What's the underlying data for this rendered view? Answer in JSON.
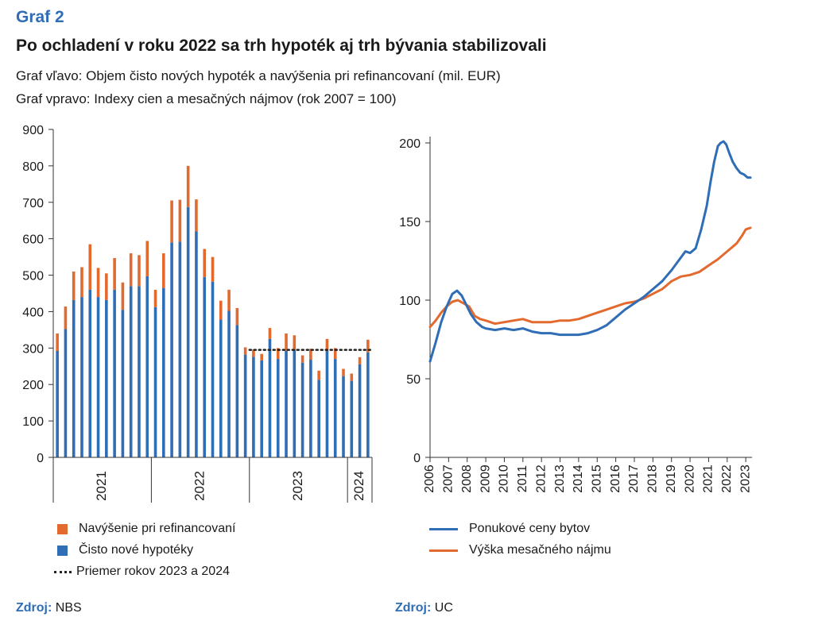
{
  "header": {
    "graf_label": "Graf 2",
    "title": "Po ochladení v roku 2022 sa trh hypoték aj trh bývania stabilizovali",
    "subtitle1": "Graf vľavo: Objem čisto nových hypoték a navýšenia pri refinancovaní (mil. EUR)",
    "subtitle2": "Graf vpravo: Indexy cien a mesačných nájmov (rok 2007 = 100)"
  },
  "colors": {
    "orange": "#e36a2f",
    "blue": "#2f6db5",
    "dots": "#222222",
    "axis": "#333333"
  },
  "chart_data": [
    {
      "type": "bar",
      "stacked": true,
      "ylim": [
        0,
        900
      ],
      "yticks": [
        0,
        100,
        200,
        300,
        400,
        500,
        600,
        700,
        800,
        900
      ],
      "year_groups": [
        {
          "label": "2021",
          "count": 12
        },
        {
          "label": "2022",
          "count": 12
        },
        {
          "label": "2023",
          "count": 12
        },
        {
          "label": "2024",
          "count": 3
        }
      ],
      "series": [
        {
          "name": "Čisto nové hypotéky",
          "color": "#2f6db5",
          "values": [
            292,
            352,
            432,
            440,
            460,
            440,
            432,
            460,
            405,
            470,
            470,
            497,
            412,
            465,
            590,
            592,
            687,
            620,
            495,
            482,
            378,
            402,
            363,
            282,
            276,
            266,
            325,
            270,
            292,
            295,
            260,
            268,
            213,
            292,
            270,
            223,
            210,
            255,
            288
          ]
        },
        {
          "name": "Navýšenie pri refinancovaní",
          "color": "#e36a2f",
          "values": [
            48,
            62,
            78,
            82,
            125,
            80,
            73,
            87,
            75,
            90,
            85,
            97,
            48,
            95,
            115,
            115,
            113,
            88,
            77,
            68,
            52,
            58,
            47,
            20,
            20,
            18,
            30,
            30,
            48,
            40,
            20,
            30,
            25,
            33,
            30,
            20,
            20,
            20,
            35
          ]
        }
      ],
      "average_line": {
        "name": "Priemer rokov 2023 a 2024",
        "value": 295
      }
    },
    {
      "type": "line",
      "ylim": [
        0,
        200
      ],
      "yticks": [
        0,
        50,
        100,
        150,
        200
      ],
      "xlim": [
        2006,
        2023.25
      ],
      "xticks": [
        "2006",
        "2007",
        "2008",
        "2009",
        "2010",
        "2011",
        "2012",
        "2013",
        "2014",
        "2015",
        "2016",
        "2017",
        "2018",
        "2019",
        "2020",
        "2021",
        "2022",
        "2023"
      ],
      "series": [
        {
          "name": "Ponukové ceny bytov",
          "color": "#2f6db5",
          "x": [
            2006,
            2006.3,
            2006.6,
            2006.9,
            2007.2,
            2007.45,
            2007.7,
            2007.95,
            2008.2,
            2008.5,
            2008.8,
            2009.0,
            2009.5,
            2010.0,
            2010.5,
            2011.0,
            2011.5,
            2012.0,
            2012.5,
            2013.0,
            2013.5,
            2014.0,
            2014.5,
            2015.0,
            2015.5,
            2016.0,
            2016.5,
            2017.0,
            2017.5,
            2018.0,
            2018.5,
            2019.0,
            2019.5,
            2019.75,
            2020.0,
            2020.3,
            2020.6,
            2020.9,
            2021.1,
            2021.3,
            2021.5,
            2021.65,
            2021.8,
            2021.95,
            2022.1,
            2022.3,
            2022.5,
            2022.7,
            2022.9,
            2023.1,
            2023.25
          ],
          "values": [
            61,
            73,
            86,
            96,
            104,
            106,
            103,
            97,
            91,
            86,
            83,
            82,
            81,
            82,
            81,
            82,
            80,
            79,
            79,
            78,
            78,
            78,
            79,
            81,
            84,
            89,
            94,
            98,
            102,
            107,
            112,
            119,
            127,
            131,
            130,
            133,
            145,
            160,
            175,
            188,
            198,
            200,
            201,
            199,
            194,
            188,
            184,
            181,
            180,
            178,
            178
          ]
        },
        {
          "name": "Výška mesačného nájmu",
          "color": "#e36a2f",
          "x": [
            2006,
            2006.3,
            2006.6,
            2006.9,
            2007.2,
            2007.5,
            2007.8,
            2008.1,
            2008.4,
            2008.7,
            2009.0,
            2009.5,
            2010.0,
            2010.5,
            2011.0,
            2011.5,
            2012.0,
            2012.5,
            2013.0,
            2013.5,
            2014.0,
            2014.5,
            2015.0,
            2015.5,
            2016.0,
            2016.5,
            2017.0,
            2017.5,
            2018.0,
            2018.5,
            2019.0,
            2019.5,
            2020.0,
            2020.5,
            2021.0,
            2021.5,
            2022.0,
            2022.5,
            2022.8,
            2023.0,
            2023.25
          ],
          "values": [
            83,
            87,
            92,
            96,
            99,
            100,
            98,
            96,
            90,
            88,
            87,
            85,
            86,
            87,
            88,
            86,
            86,
            86,
            87,
            87,
            88,
            90,
            92,
            94,
            96,
            98,
            99,
            101,
            104,
            107,
            112,
            115,
            116,
            118,
            122,
            126,
            131,
            136,
            141,
            145,
            146
          ]
        }
      ]
    }
  ],
  "legend_left": [
    {
      "label": "Navýšenie pri refinancovaní"
    },
    {
      "label": "Čisto nové hypotéky"
    },
    {
      "label": "Priemer rokov 2023 a 2024"
    }
  ],
  "legend_right": [
    {
      "label": "Ponukové ceny bytov"
    },
    {
      "label": "Výška mesačného nájmu"
    }
  ],
  "sources": [
    {
      "label": "Zdroj:",
      "value": "NBS"
    },
    {
      "label": "Zdroj:",
      "value": "UC"
    }
  ]
}
